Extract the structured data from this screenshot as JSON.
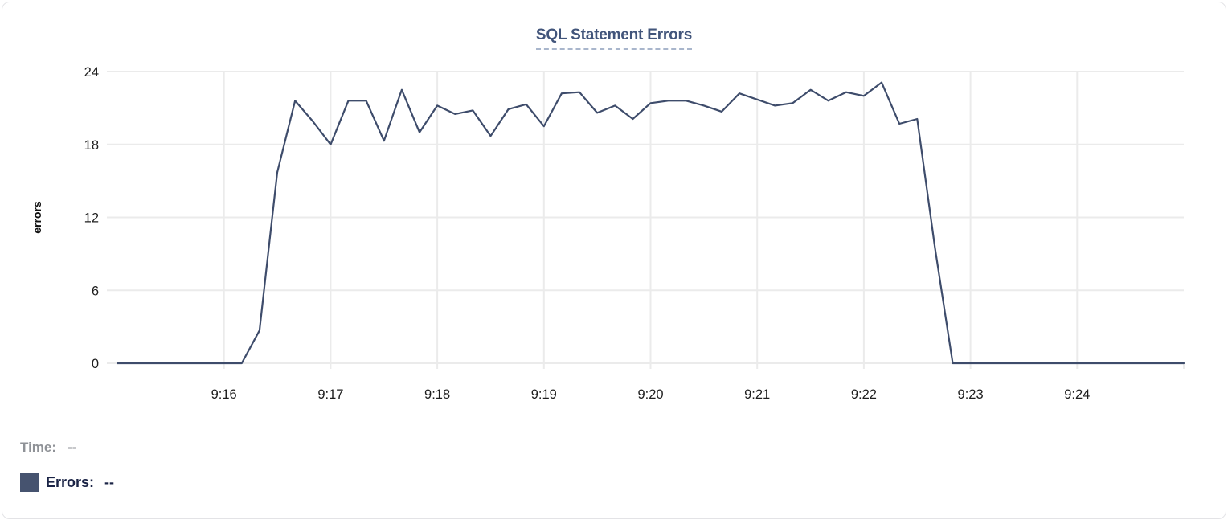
{
  "card": {
    "background": "#ffffff",
    "border_color": "#e3e3e6"
  },
  "title": {
    "text": "SQL Statement Errors",
    "color": "#42557b",
    "underline_color": "#a9b6cc"
  },
  "chart_data": {
    "type": "line",
    "title": "SQL Statement Errors",
    "xlabel": "",
    "ylabel": "errors",
    "ylim": [
      0,
      24
    ],
    "yticks": [
      0,
      6,
      12,
      18,
      24
    ],
    "grid": true,
    "legend_position": "none",
    "x_start": "9:15:00",
    "x_end": "9:25:00",
    "interval_seconds": 10,
    "x_tick_labels": [
      "9:16",
      "9:17",
      "9:18",
      "9:19",
      "9:20",
      "9:21",
      "9:22",
      "9:23",
      "9:24"
    ],
    "line_color": "#3e4c6b",
    "grid_color": "#ebebeb",
    "series": [
      {
        "name": "Errors",
        "values": [
          0,
          0,
          0,
          0,
          0,
          0,
          0,
          0,
          2.7,
          15.7,
          21.6,
          19.9,
          18,
          21.6,
          21.6,
          18.3,
          22.5,
          19,
          21.2,
          20.5,
          20.8,
          18.7,
          20.9,
          21.3,
          19.5,
          22.2,
          22.3,
          20.6,
          21.2,
          20.1,
          21.4,
          21.6,
          21.6,
          21.2,
          20.7,
          22.2,
          21.7,
          21.2,
          21.4,
          22.5,
          21.6,
          22.3,
          22,
          23.1,
          19.7,
          20.1,
          9.5,
          0,
          0,
          0,
          0,
          0,
          0,
          0,
          0,
          0,
          0,
          0,
          0,
          0,
          0
        ]
      }
    ]
  },
  "tooltip": {
    "time_label": "Time:",
    "time_value": "--",
    "errors_label": "Errors:",
    "errors_value": "--",
    "swatch_color": "#46536f"
  }
}
